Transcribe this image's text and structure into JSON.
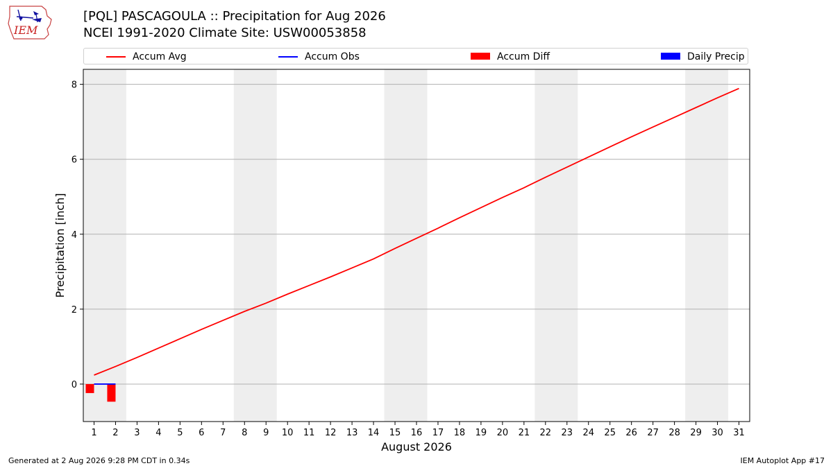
{
  "header": {
    "logo_text": "IEM",
    "title_line1": "[PQL] PASCAGOULA :: Precipitation for Aug 2026",
    "title_line2": "NCEI 1991-2020 Climate Site: USW00053858"
  },
  "footer": {
    "left": "Generated at 2 Aug 2026 9:28 PM CDT in 0.34s",
    "right": "IEM Autoplot App #17"
  },
  "colors": {
    "accum_avg": "#ff0000",
    "accum_obs": "#0000ff",
    "accum_diff": "#ff0000",
    "daily_precip": "#0000ff",
    "weekend_band": "#eeeeee",
    "grid": "#b0b0b0"
  },
  "chart_data": {
    "type": "line",
    "xlabel": "August 2026",
    "ylabel": "Precipitation [inch]",
    "x": [
      1,
      2,
      3,
      4,
      5,
      6,
      7,
      8,
      9,
      10,
      11,
      12,
      13,
      14,
      15,
      16,
      17,
      18,
      19,
      20,
      21,
      22,
      23,
      24,
      25,
      26,
      27,
      28,
      29,
      30,
      31
    ],
    "xlim": [
      0.5,
      31.5
    ],
    "ylim": [
      -1.0,
      8.4
    ],
    "yticks": [
      0,
      2,
      4,
      6,
      8
    ],
    "grid": "horizontal",
    "legend_position": "top",
    "weekend_bands": [
      [
        0.5,
        2.5
      ],
      [
        7.5,
        9.5
      ],
      [
        14.5,
        16.5
      ],
      [
        21.5,
        23.5
      ],
      [
        28.5,
        30.5
      ]
    ],
    "legend": [
      {
        "label": "Accum Avg",
        "kind": "line",
        "color": "#ff0000"
      },
      {
        "label": "Accum Obs",
        "kind": "line",
        "color": "#0000ff"
      },
      {
        "label": "Accum Diff",
        "kind": "box",
        "color": "#ff0000"
      },
      {
        "label": "Daily Precip",
        "kind": "box",
        "color": "#0000ff"
      }
    ],
    "series": [
      {
        "name": "Accum Avg",
        "kind": "line",
        "values": [
          0.24,
          0.47,
          0.71,
          0.96,
          1.21,
          1.46,
          1.7,
          1.94,
          2.16,
          2.4,
          2.63,
          2.86,
          3.1,
          3.34,
          3.62,
          3.89,
          4.16,
          4.44,
          4.71,
          4.98,
          5.24,
          5.52,
          5.79,
          6.06,
          6.33,
          6.6,
          6.86,
          7.12,
          7.38,
          7.64,
          7.89
        ]
      },
      {
        "name": "Accum Obs",
        "kind": "line",
        "x": [
          1,
          2
        ],
        "values": [
          0.0,
          0.0
        ]
      },
      {
        "name": "Accum Diff",
        "kind": "bar",
        "x": [
          1,
          2
        ],
        "values": [
          -0.24,
          -0.47
        ]
      },
      {
        "name": "Daily Precip",
        "kind": "bar",
        "x": [
          1,
          2
        ],
        "values": [
          0.0,
          0.0
        ]
      }
    ]
  }
}
